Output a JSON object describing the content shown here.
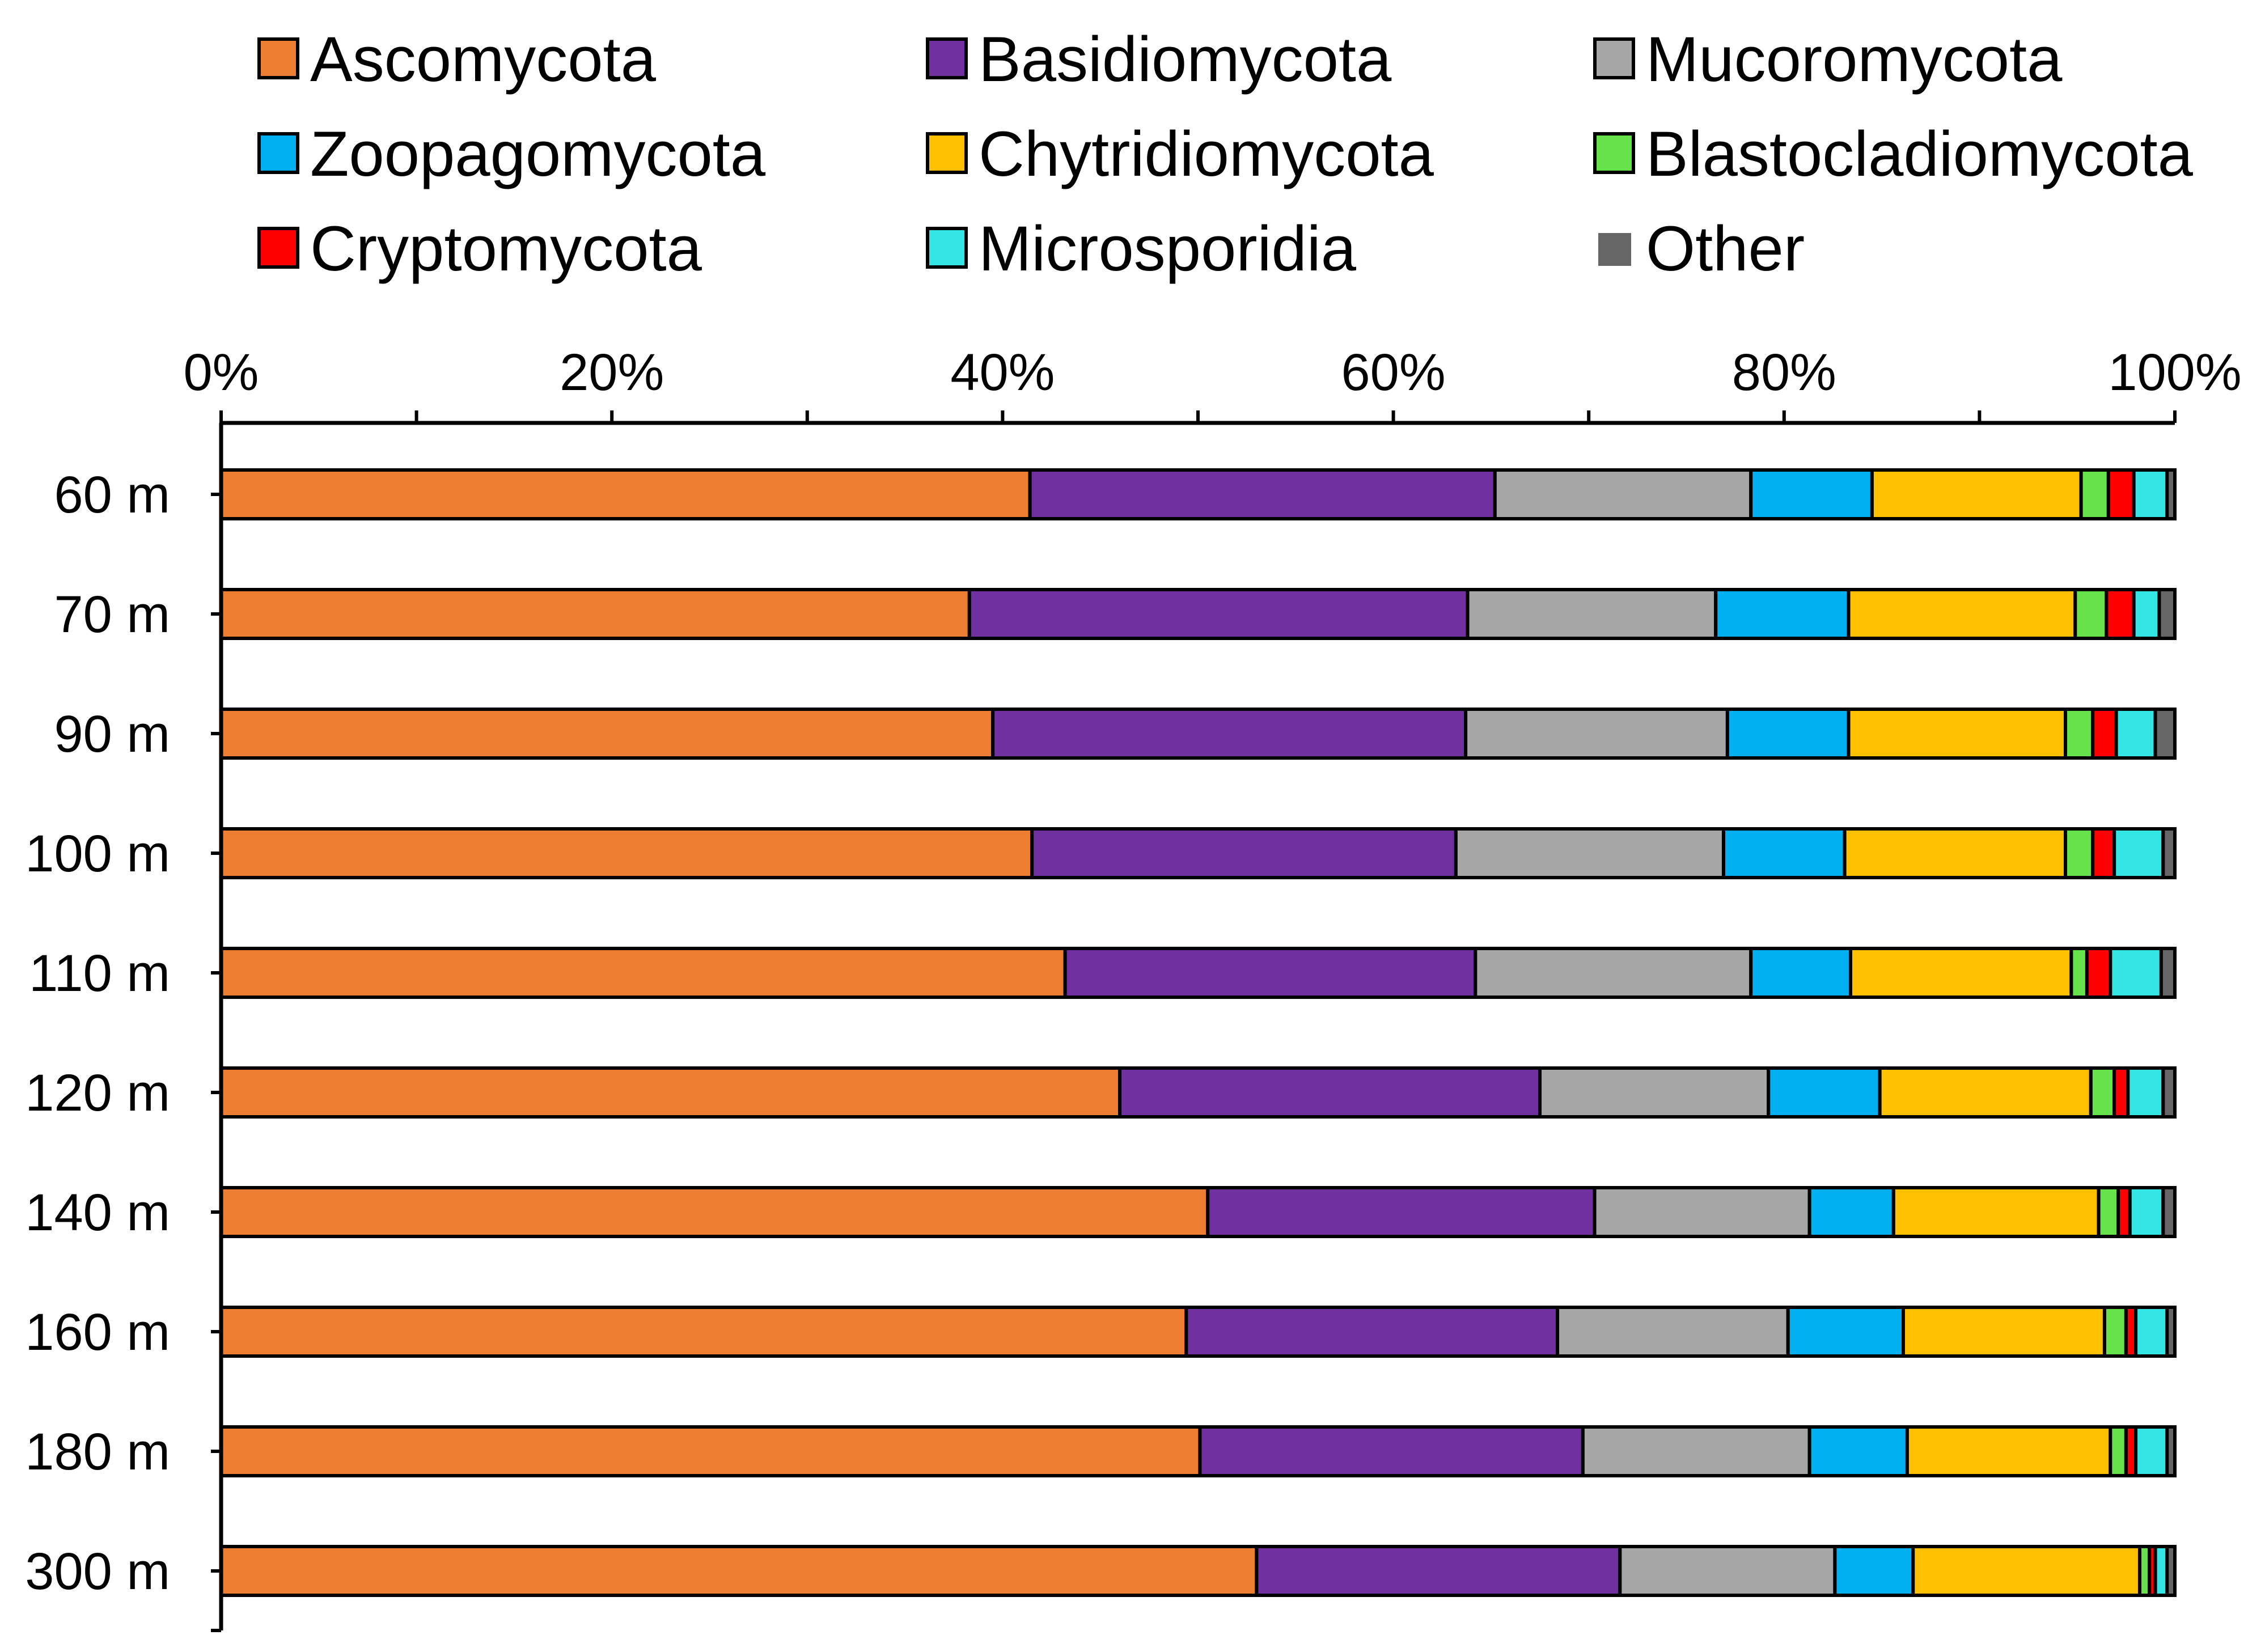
{
  "chart_data": {
    "type": "bar",
    "orientation": "horizontal",
    "stacked": true,
    "percent_axis": true,
    "title": "",
    "xlabel": "",
    "ylabel": "",
    "xlim": [
      0,
      100
    ],
    "x_axis_position": "top",
    "x_ticks": [
      0,
      20,
      40,
      60,
      80,
      100
    ],
    "x_tick_labels": [
      "0%",
      "20%",
      "40%",
      "60%",
      "80%",
      "100%"
    ],
    "grid": false,
    "legend_position": "top",
    "categories": [
      "60 m",
      "70 m",
      "90 m",
      "100 m",
      "110 m",
      "120 m",
      "140 m",
      "160 m",
      "180 m",
      "300 m"
    ],
    "series": [
      {
        "name": "Ascomycota",
        "color": "#ED7D31",
        "values": [
          41.4,
          38.3,
          39.5,
          41.5,
          43.2,
          46.0,
          50.5,
          49.4,
          50.1,
          53.0
        ]
      },
      {
        "name": "Basidiomycota",
        "color": "#7030A0",
        "values": [
          23.8,
          25.5,
          24.2,
          21.7,
          21.0,
          21.5,
          19.8,
          19.0,
          19.6,
          18.6
        ]
      },
      {
        "name": "Mucoromycota",
        "color": "#A6A6A6",
        "values": [
          13.1,
          12.7,
          13.4,
          13.7,
          14.1,
          11.7,
          11.0,
          11.8,
          11.6,
          11.0
        ]
      },
      {
        "name": "Zoopagomycota",
        "color": "#00B0F0",
        "values": [
          6.2,
          6.8,
          6.2,
          6.2,
          5.1,
          5.7,
          4.3,
          5.9,
          5.0,
          4.0
        ]
      },
      {
        "name": "Chytridiomycota",
        "color": "#FFC000",
        "values": [
          10.7,
          11.6,
          11.1,
          11.3,
          11.3,
          10.8,
          10.5,
          10.3,
          10.4,
          11.6
        ]
      },
      {
        "name": "Blastocladiomycota",
        "color": "#66E34A",
        "values": [
          1.4,
          1.6,
          1.4,
          1.4,
          0.8,
          1.2,
          1.0,
          1.1,
          0.8,
          0.5
        ]
      },
      {
        "name": "Cryptomycota",
        "color": "#FF0000",
        "values": [
          1.3,
          1.4,
          1.2,
          1.1,
          1.2,
          0.7,
          0.6,
          0.5,
          0.5,
          0.3
        ]
      },
      {
        "name": "Microsporidia",
        "color": "#33E5E5",
        "values": [
          1.7,
          1.3,
          2.0,
          2.5,
          2.6,
          1.8,
          1.7,
          1.6,
          1.6,
          0.6
        ]
      },
      {
        "name": "Other",
        "color": "#666666",
        "values": [
          0.4,
          0.8,
          1.0,
          0.6,
          0.7,
          0.6,
          0.6,
          0.4,
          0.4,
          0.4
        ]
      }
    ]
  }
}
